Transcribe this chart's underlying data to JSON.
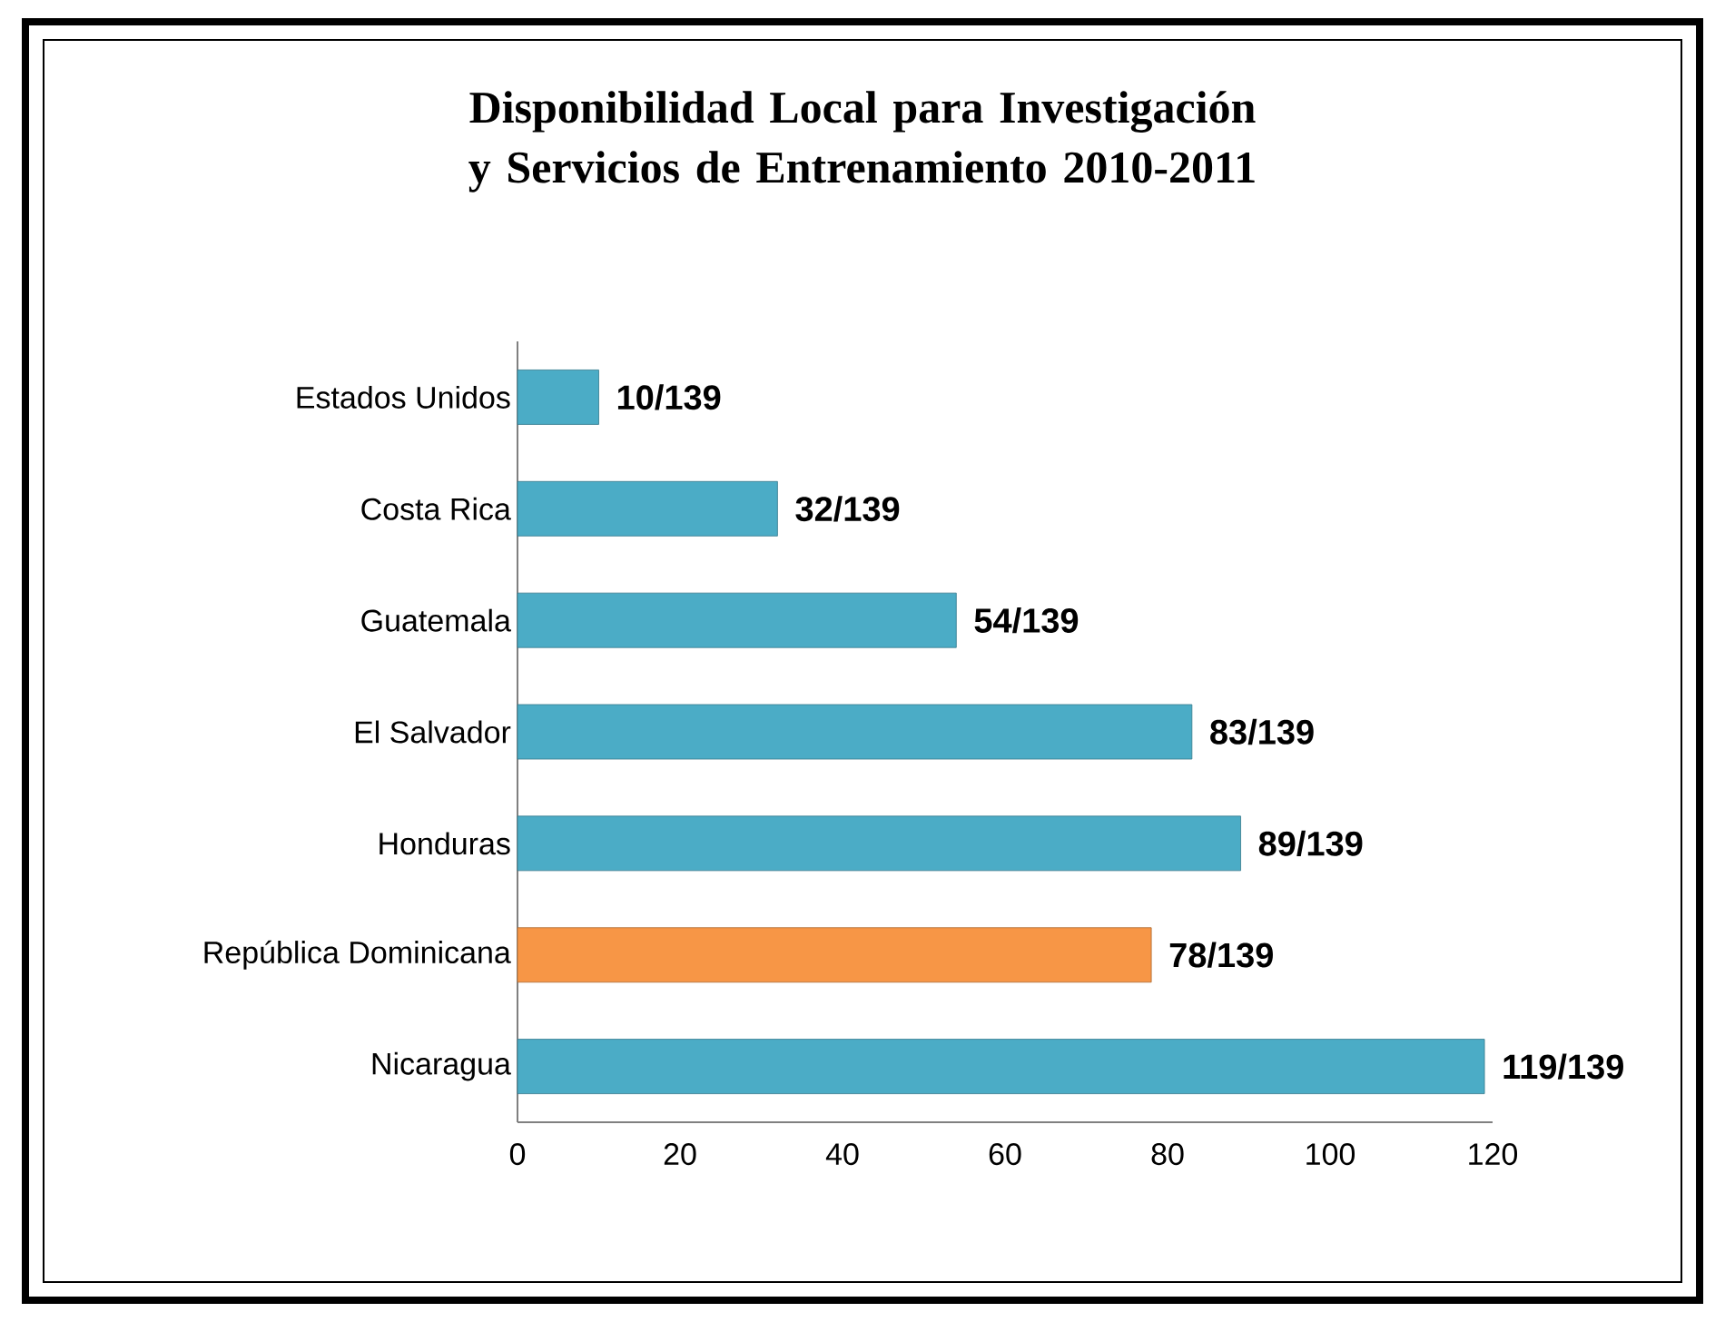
{
  "chart_data": {
    "type": "bar",
    "orientation": "horizontal",
    "title": "Disponibilidad Local para Investigación y Servicios de Entrenamiento 2010-2011",
    "categories": [
      "Estados Unidos",
      "Costa Rica",
      "Guatemala",
      "El Salvador",
      "Honduras",
      "República Dominicana",
      "Nicaragua"
    ],
    "values": [
      10,
      32,
      54,
      83,
      89,
      78,
      119
    ],
    "colors": [
      "#4bacc6",
      "#4bacc6",
      "#4bacc6",
      "#4bacc6",
      "#4bacc6",
      "#f79646",
      "#4bacc6"
    ],
    "value_labels": [
      "10/139",
      "32/139",
      "54/139",
      "83/139",
      "89/139",
      "78/139",
      "119/139"
    ],
    "xlim": [
      0,
      120
    ],
    "xticks": [
      0,
      20,
      40,
      60,
      80,
      100,
      120
    ]
  }
}
